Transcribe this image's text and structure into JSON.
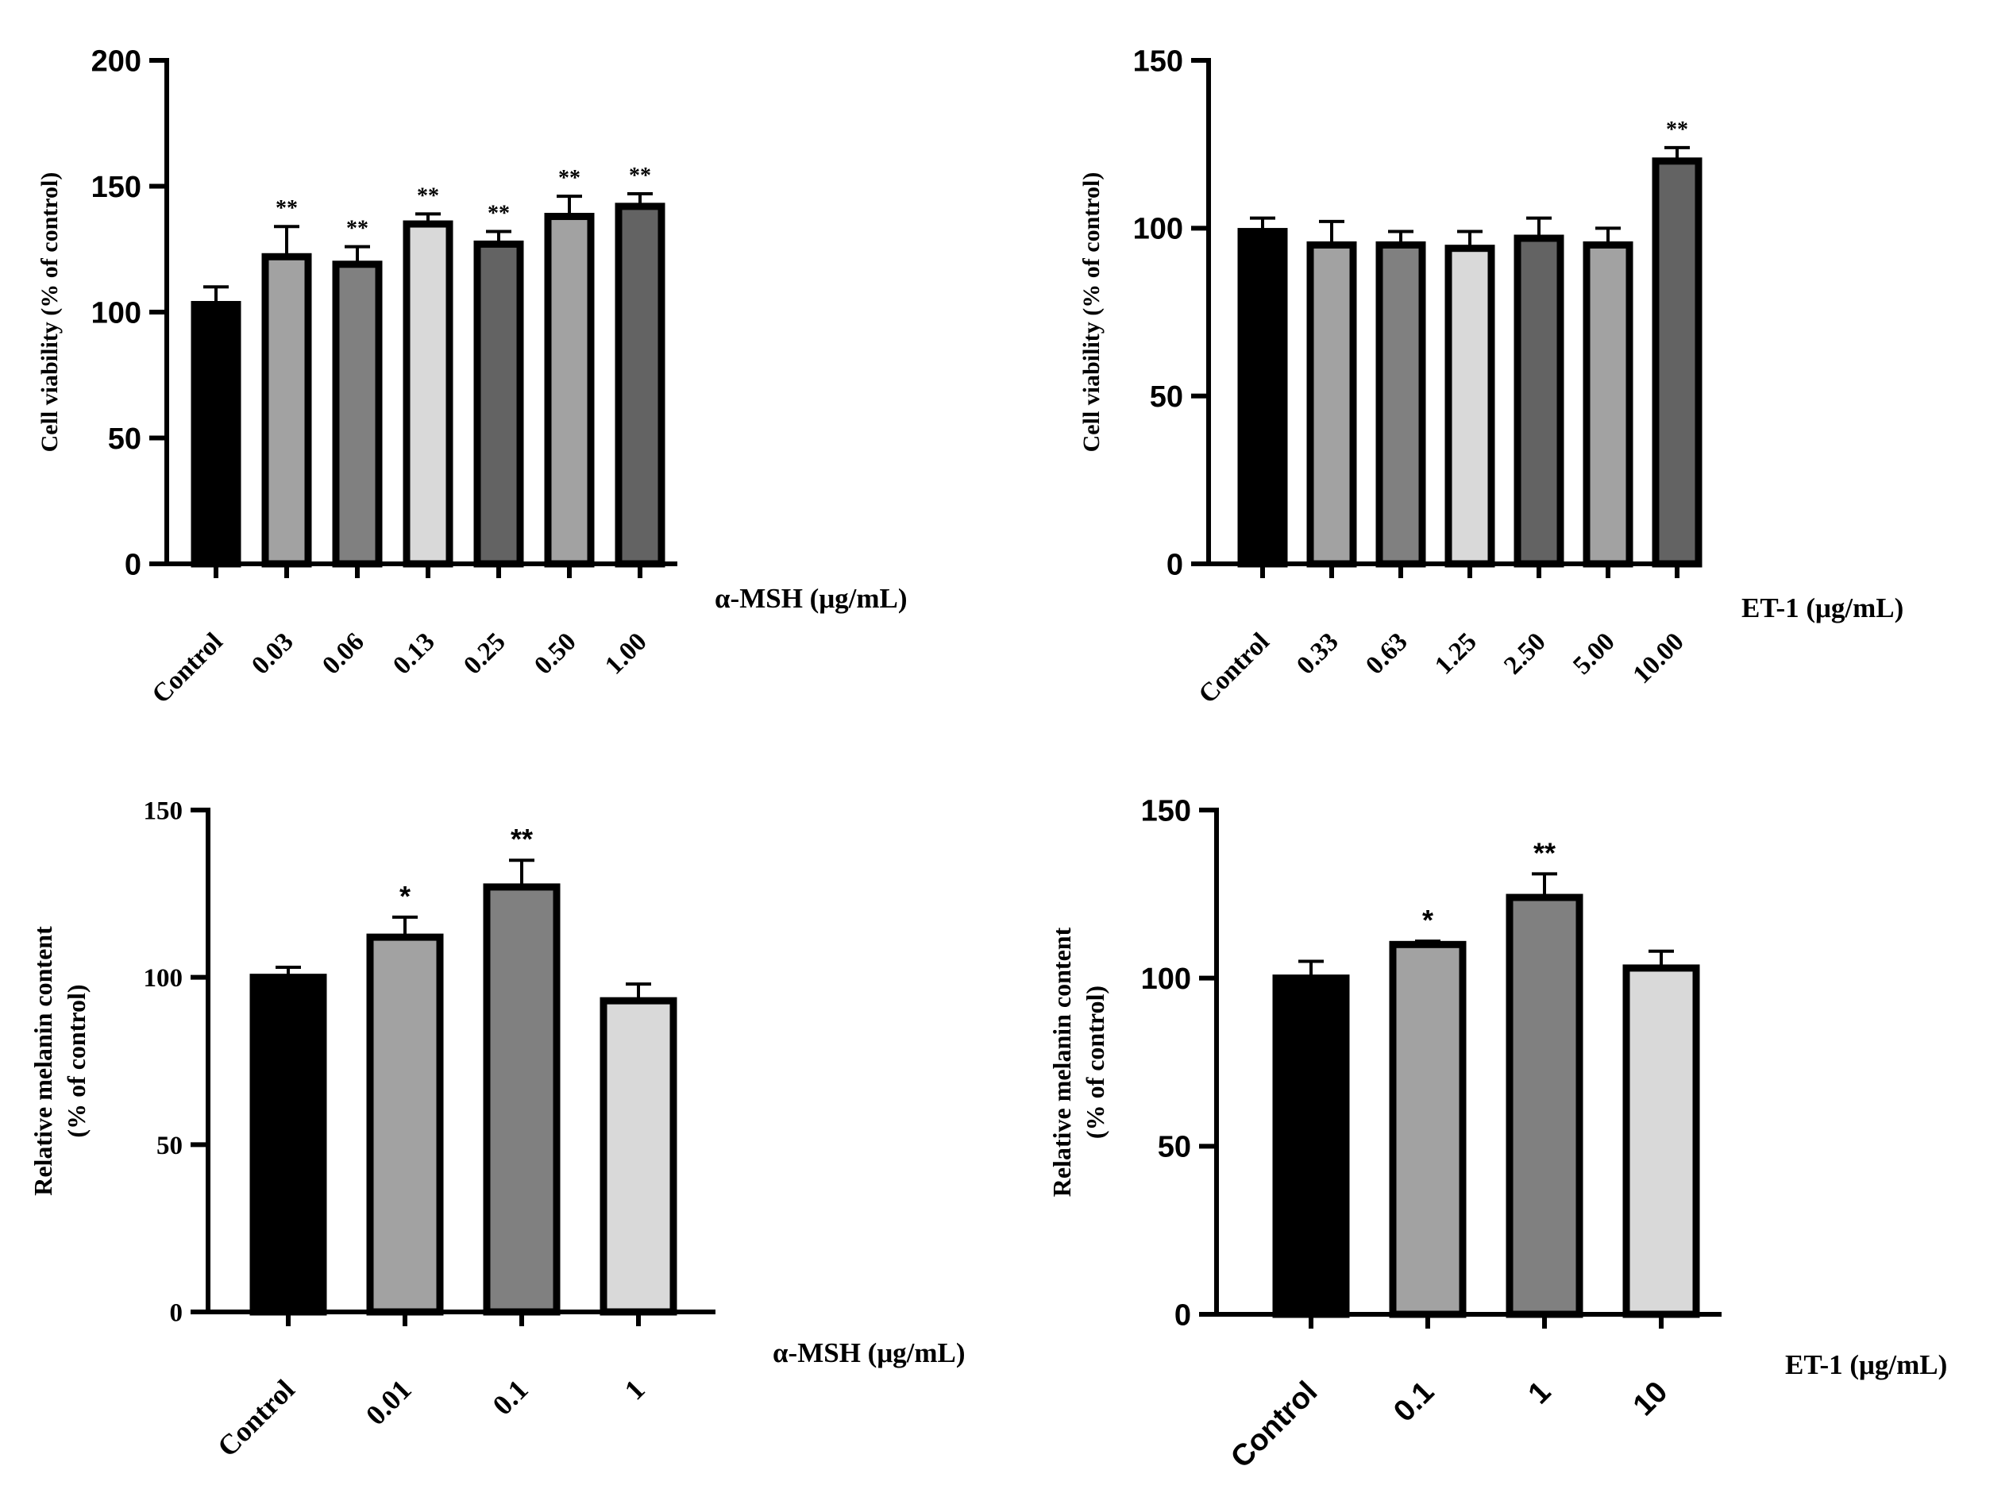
{
  "chart_data": [
    {
      "id": "viability-msh",
      "type": "bar",
      "ylabel": [
        "Cell viability (% of control)"
      ],
      "xlabel": "α-MSH (μg/mL)",
      "ylim": [
        0,
        200
      ],
      "yticks": [
        0,
        50,
        100,
        150,
        200
      ],
      "ytick_labels": [
        "0",
        "50",
        "100",
        "150",
        "200"
      ],
      "categories": [
        "Control",
        "0.03",
        "0.06",
        "0.13",
        "0.25",
        "0.50",
        "1.00"
      ],
      "values": [
        103,
        122,
        119,
        135,
        127,
        138,
        142
      ],
      "errors": [
        7,
        12,
        7,
        4,
        5,
        8,
        5
      ],
      "significance": [
        "",
        "**",
        "**",
        "**",
        "**",
        "**",
        "**"
      ],
      "colors": [
        "#000000",
        "#a2a2a2",
        "#808080",
        "#d9d9d9",
        "#636363",
        "#a2a2a2",
        "#636363"
      ]
    },
    {
      "id": "viability-et1",
      "type": "bar",
      "ylabel": [
        "Cell viability (% of control)"
      ],
      "xlabel": "ET-1 (μg/mL)",
      "ylim": [
        0,
        150
      ],
      "yticks": [
        0,
        50,
        100,
        150
      ],
      "ytick_labels": [
        "0",
        "50",
        "100",
        "150"
      ],
      "categories": [
        "Control",
        "0.33",
        "0.63",
        "1.25",
        "2.50",
        "5.00",
        "10.00"
      ],
      "values": [
        99,
        95,
        95,
        94,
        97,
        95,
        120
      ],
      "errors": [
        4,
        7,
        4,
        5,
        6,
        5,
        4
      ],
      "significance": [
        "",
        "",
        "",
        "",
        "",
        "",
        "**"
      ],
      "colors": [
        "#000000",
        "#a2a2a2",
        "#808080",
        "#d9d9d9",
        "#636363",
        "#a2a2a2",
        "#636363"
      ]
    },
    {
      "id": "melanin-msh",
      "type": "bar",
      "ylabel": [
        "Relative melanin content",
        "(% of control)"
      ],
      "xlabel": "α-MSH (μg/mL)",
      "ylim": [
        0,
        150
      ],
      "yticks": [
        0,
        50,
        100,
        150
      ],
      "ytick_labels": [
        "0",
        "50",
        "100",
        "150"
      ],
      "categories": [
        "Control",
        "0.01",
        "0.1",
        "1"
      ],
      "values": [
        100,
        112,
        127,
        93
      ],
      "errors": [
        3,
        6,
        8,
        5
      ],
      "significance": [
        "",
        "*",
        "**",
        ""
      ],
      "colors": [
        "#000000",
        "#a2a2a2",
        "#808080",
        "#d9d9d9"
      ]
    },
    {
      "id": "melanin-et1",
      "type": "bar",
      "ylabel": [
        "Relative melanin content",
        "(% of control)"
      ],
      "xlabel": "ET-1 (μg/mL)",
      "ylim": [
        0,
        150
      ],
      "yticks": [
        0,
        50,
        100,
        150
      ],
      "ytick_labels": [
        "0",
        "50",
        "100",
        "150"
      ],
      "categories": [
        "Control",
        "0.1",
        "1",
        "10"
      ],
      "values": [
        100,
        110,
        124,
        103
      ],
      "errors": [
        5,
        1,
        7,
        5
      ],
      "significance": [
        "",
        "*",
        "**",
        ""
      ],
      "colors": [
        "#000000",
        "#a2a2a2",
        "#808080",
        "#d9d9d9"
      ]
    }
  ]
}
